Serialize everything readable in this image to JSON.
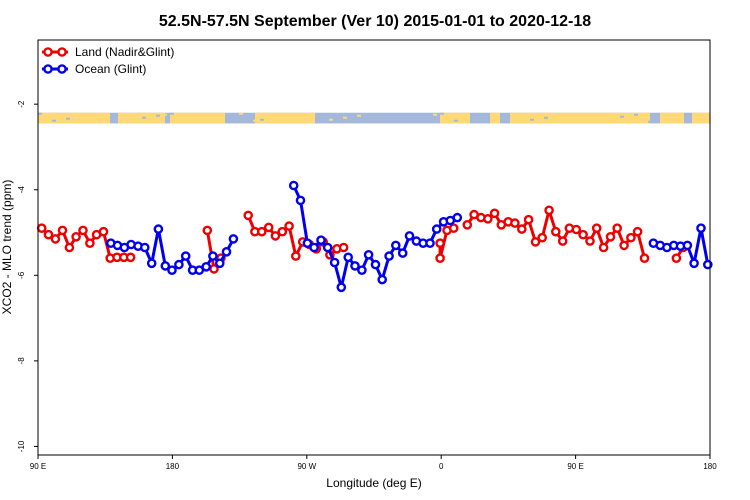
{
  "chart_data": {
    "type": "line",
    "title": "52.5N-57.5N September (Ver 10)   2015-01-01 to 2020-12-18",
    "xlabel": "Longitude (deg E)",
    "ylabel": "XCO2 - MLO trend (ppm)",
    "xlim": [
      90,
      450
    ],
    "ylim": [
      -10.2,
      -0.5
    ],
    "x_tick_values": [
      90,
      162,
      234,
      306,
      378,
      450
    ],
    "x_tick_labels": [
      "90 E",
      "180",
      "90 W",
      "0",
      "90 E",
      "180"
    ],
    "y_ticks": [
      -2,
      -4,
      -6,
      -8,
      -10
    ],
    "grid": false,
    "legend_position": "top-left",
    "land_sea_strip": {
      "y_range": [
        -2.45,
        -2.2
      ],
      "land_color": "#FFD977",
      "ocean_color": "#A4B8DC"
    },
    "series": [
      {
        "name": "Land (Nadir&Glint)",
        "color": "#EE0000",
        "segments": [
          [
            [
              92,
              -4.9
            ],
            [
              95.6,
              -5.05
            ],
            [
              99.3,
              -5.15
            ],
            [
              103.1,
              -4.95
            ],
            [
              106.8,
              -5.35
            ],
            [
              110.4,
              -5.1
            ],
            [
              114.1,
              -4.95
            ],
            [
              117.8,
              -5.25
            ],
            [
              121.4,
              -5.05
            ],
            [
              125.1,
              -4.98
            ],
            [
              128.7,
              -5.6
            ],
            [
              132.3,
              -5.58
            ],
            [
              136,
              -5.58
            ],
            [
              139.6,
              -5.58
            ]
          ],
          [
            [
              180.7,
              -4.95
            ],
            [
              184.3,
              -5.85
            ],
            [
              188,
              -5.6
            ]
          ],
          [
            [
              202.6,
              -4.6
            ],
            [
              206.2,
              -4.98
            ],
            [
              209.9,
              -4.98
            ],
            [
              213.6,
              -4.88
            ],
            [
              217.2,
              -5.08
            ],
            [
              220.9,
              -4.98
            ],
            [
              224.5,
              -4.85
            ],
            [
              228.1,
              -5.55
            ],
            [
              231.8,
              -5.22
            ],
            [
              235.4,
              -5.28
            ],
            [
              239.1,
              -5.38
            ],
            [
              242.8,
              -5.22
            ],
            [
              246.4,
              -5.52
            ],
            [
              250.1,
              -5.38
            ],
            [
              253.7,
              -5.35
            ]
          ],
          [
            [
              305.4,
              -5.25
            ],
            [
              305.4,
              -5.6
            ],
            [
              309.1,
              -4.95
            ],
            [
              312.7,
              -4.9
            ]
          ],
          [
            [
              320,
              -4.82
            ],
            [
              323.6,
              -4.58
            ],
            [
              327.3,
              -4.65
            ],
            [
              331,
              -4.68
            ],
            [
              334.6,
              -4.55
            ],
            [
              338.2,
              -4.82
            ],
            [
              341.9,
              -4.75
            ],
            [
              345.5,
              -4.78
            ],
            [
              349.2,
              -4.92
            ],
            [
              352.8,
              -4.7
            ],
            [
              356.5,
              -5.22
            ],
            [
              360.1,
              -5.12
            ],
            [
              363.8,
              -4.48
            ],
            [
              367.4,
              -4.98
            ],
            [
              371.1,
              -5.2
            ],
            [
              374.7,
              -4.9
            ],
            [
              378.4,
              -4.93
            ],
            [
              382,
              -5.05
            ],
            [
              385.7,
              -5.2
            ],
            [
              389.3,
              -4.9
            ],
            [
              393,
              -5.35
            ],
            [
              396.7,
              -5.1
            ],
            [
              400.3,
              -4.9
            ],
            [
              404,
              -5.3
            ],
            [
              407.6,
              -5.12
            ],
            [
              411.2,
              -4.98
            ],
            [
              414.9,
              -5.6
            ]
          ],
          [
            [
              432,
              -5.6
            ],
            [
              435.6,
              -5.35
            ]
          ]
        ]
      },
      {
        "name": "Ocean (Glint)",
        "color": "#0000EE",
        "segments": [
          [
            [
              129,
              -5.25
            ],
            [
              132.6,
              -5.3
            ],
            [
              136.3,
              -5.35
            ],
            [
              139.9,
              -5.28
            ],
            [
              143.6,
              -5.32
            ],
            [
              147.2,
              -5.35
            ],
            [
              150.9,
              -5.72
            ],
            [
              154.5,
              -4.92
            ],
            [
              158.2,
              -5.78
            ],
            [
              161.8,
              -5.88
            ],
            [
              165.5,
              -5.75
            ],
            [
              169.1,
              -5.55
            ],
            [
              172.8,
              -5.88
            ],
            [
              176.4,
              -5.88
            ],
            [
              180.1,
              -5.8
            ],
            [
              183.7,
              -5.55
            ],
            [
              187.4,
              -5.72
            ],
            [
              191,
              -5.45
            ],
            [
              194.7,
              -5.15
            ]
          ],
          [
            [
              227,
              -3.9
            ],
            [
              230.6,
              -4.25
            ],
            [
              234.3,
              -5.25
            ],
            [
              237.9,
              -5.35
            ],
            [
              241.6,
              -5.18
            ],
            [
              245.2,
              -5.35
            ],
            [
              248.9,
              -5.7
            ],
            [
              252.5,
              -6.28
            ],
            [
              256.2,
              -5.58
            ],
            [
              259.8,
              -5.78
            ],
            [
              263.5,
              -5.88
            ],
            [
              267.1,
              -5.52
            ],
            [
              270.8,
              -5.75
            ],
            [
              274.4,
              -6.1
            ],
            [
              278.1,
              -5.55
            ],
            [
              281.7,
              -5.3
            ],
            [
              285.4,
              -5.48
            ],
            [
              289,
              -5.08
            ],
            [
              292.7,
              -5.2
            ],
            [
              296.3,
              -5.25
            ],
            [
              300,
              -5.25
            ],
            [
              303.6,
              -4.92
            ],
            [
              307.3,
              -4.75
            ],
            [
              310.9,
              -4.72
            ],
            [
              314.6,
              -4.65
            ]
          ],
          [
            [
              419.7,
              -5.25
            ],
            [
              423.3,
              -5.3
            ],
            [
              426.9,
              -5.35
            ],
            [
              430.6,
              -5.3
            ],
            [
              434.2,
              -5.32
            ],
            [
              437.9,
              -5.3
            ],
            [
              441.5,
              -5.72
            ],
            [
              445.2,
              -4.9
            ],
            [
              448.8,
              -5.75
            ]
          ]
        ]
      }
    ]
  }
}
